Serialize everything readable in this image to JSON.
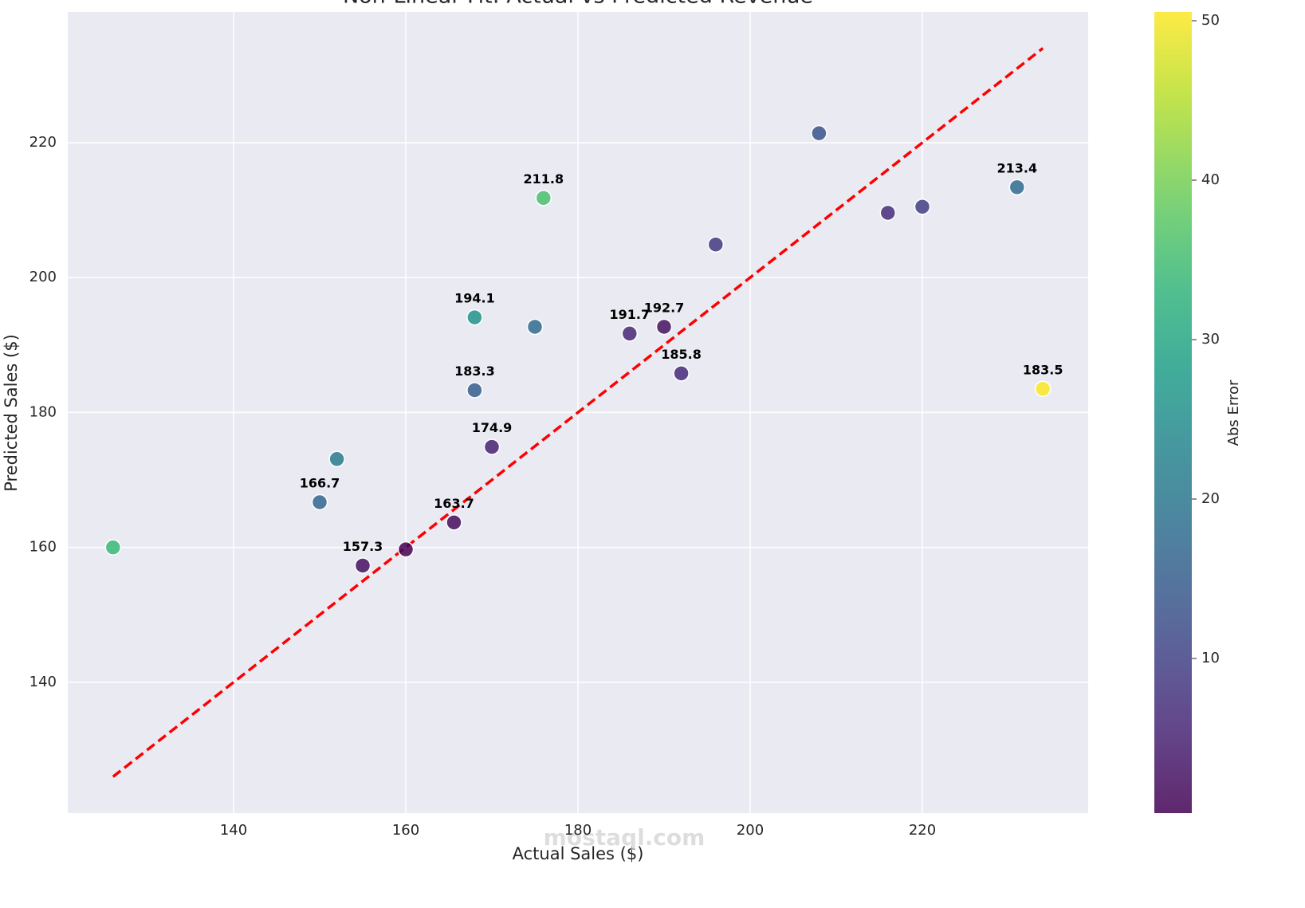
{
  "chart_data": {
    "type": "scatter",
    "title": "Non-Linear Fit: Actual vs Predicted Revenue",
    "x_label": "Actual Sales ($)",
    "y_label": "Predicted Sales ($)",
    "x": [
      126,
      150,
      152,
      155,
      160,
      165.6,
      168,
      168,
      170,
      175,
      176,
      186,
      190,
      192,
      196,
      208,
      216,
      220,
      231,
      234
    ],
    "values": [
      160,
      166.7,
      173.1,
      157.3,
      159.7,
      163.7,
      183.3,
      194.1,
      174.9,
      192.7,
      211.8,
      191.7,
      192.7,
      185.8,
      204.9,
      221.4,
      209.6,
      210.5,
      213.4,
      183.5
    ],
    "value_labels": [
      null,
      "166.7",
      null,
      "157.3",
      null,
      "163.7",
      "183.3",
      "194.1",
      "174.9",
      null,
      "211.8",
      "191.7",
      "192.7",
      "185.8",
      null,
      null,
      null,
      null,
      "213.4",
      "183.5"
    ],
    "color_values": [
      34,
      16.7,
      21.1,
      2.3,
      0.3,
      1.9,
      15.3,
      26.1,
      4.9,
      17.7,
      35.8,
      5.7,
      2.7,
      6.2,
      8.9,
      13.4,
      6.4,
      9.5,
      17.6,
      50.5
    ],
    "colormap": "viridis",
    "colorbar_label": "Abs Error",
    "clim": [
      0.3,
      50.55
    ],
    "cticks": [
      10,
      20,
      30,
      40,
      50
    ],
    "reference_line": {
      "x": [
        126,
        234
      ],
      "y": [
        126,
        234
      ],
      "color": "#ff0000"
    },
    "xlim": [
      120.74,
      239.26
    ],
    "xticks": [
      140,
      160,
      180,
      200,
      220
    ],
    "ylim": [
      120.6,
      239.38
    ],
    "yticks": [
      140,
      160,
      180,
      200,
      220
    ],
    "grid": true,
    "watermark": "mostaql.com"
  }
}
